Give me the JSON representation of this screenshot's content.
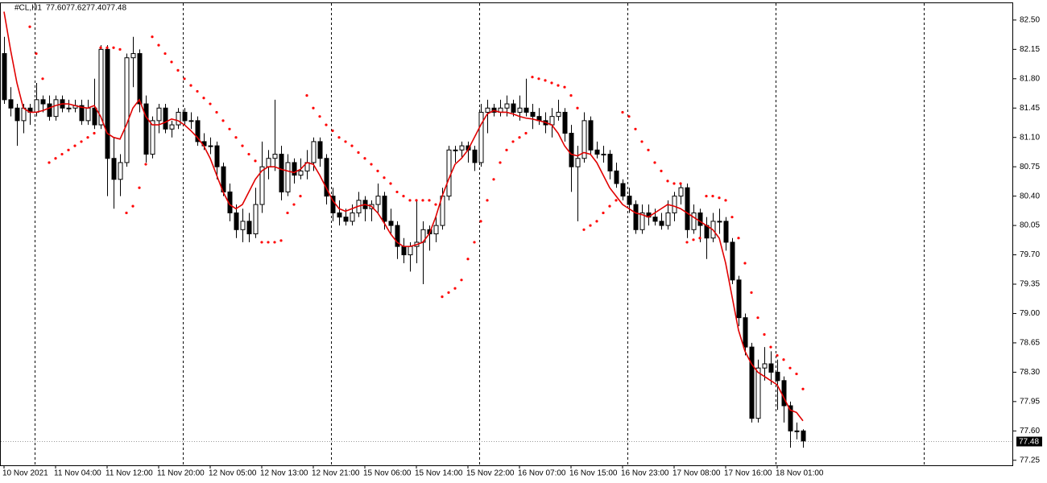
{
  "chart_data": {
    "type": "candlestick",
    "symbol": "#CL,H1",
    "info_labels": [
      "77.60",
      "77.62",
      "77.40",
      "77.48"
    ],
    "categories": [
      "10 Nov 2021",
      null,
      null,
      null,
      null,
      null,
      null,
      null,
      "11 Nov 04:00",
      null,
      null,
      null,
      null,
      null,
      null,
      null,
      "11 Nov 12:00",
      null,
      null,
      null,
      null,
      null,
      null,
      null,
      "11 Nov 20:00",
      null,
      null,
      null,
      null,
      null,
      null,
      null,
      "12 Nov 05:00",
      null,
      null,
      null,
      null,
      null,
      null,
      null,
      "12 Nov 13:00",
      null,
      null,
      null,
      null,
      null,
      null,
      null,
      "12 Nov 21:00",
      null,
      null,
      null,
      null,
      null,
      null,
      null,
      "15 Nov 06:00",
      null,
      null,
      null,
      null,
      null,
      null,
      null,
      "15 Nov 14:00",
      null,
      null,
      null,
      null,
      null,
      null,
      null,
      "15 Nov 22:00",
      null,
      null,
      null,
      null,
      null,
      null,
      null,
      "16 Nov 07:00",
      null,
      null,
      null,
      null,
      null,
      null,
      null,
      "16 Nov 15:00",
      null,
      null,
      null,
      null,
      null,
      null,
      null,
      "16 Nov 23:00",
      null,
      null,
      null,
      null,
      null,
      null,
      null,
      "17 Nov 08:00",
      null,
      null,
      null,
      null,
      null,
      null,
      null,
      "17 Nov 16:00",
      null,
      null,
      null,
      null,
      null,
      null,
      null,
      "18 Nov 01:00",
      null,
      null,
      null,
      null
    ],
    "period_separators": [
      5,
      28,
      51,
      74,
      97,
      120,
      143
    ],
    "ohlc": [
      [
        82.1,
        82.3,
        81.5,
        81.55
      ],
      [
        81.55,
        81.7,
        81.35,
        81.45
      ],
      [
        81.45,
        81.5,
        81.0,
        81.3
      ],
      [
        81.3,
        81.5,
        81.15,
        81.45
      ],
      [
        81.45,
        81.5,
        81.25,
        81.4
      ],
      [
        81.4,
        81.75,
        81.35,
        81.55
      ],
      [
        81.55,
        81.6,
        81.4,
        81.5
      ],
      [
        81.5,
        81.6,
        81.3,
        81.35
      ],
      [
        81.35,
        81.6,
        81.3,
        81.55
      ],
      [
        81.55,
        81.6,
        81.4,
        81.45
      ],
      [
        81.45,
        81.55,
        81.4,
        81.45
      ],
      [
        81.45,
        81.55,
        81.4,
        81.48
      ],
      [
        81.48,
        81.55,
        81.25,
        81.3
      ],
      [
        81.3,
        81.55,
        81.25,
        81.45
      ],
      [
        81.45,
        81.8,
        81.2,
        81.25
      ],
      [
        81.25,
        82.2,
        81.2,
        82.15
      ],
      [
        82.15,
        82.2,
        80.4,
        80.85
      ],
      [
        80.85,
        81.1,
        80.25,
        80.6
      ],
      [
        80.6,
        80.9,
        80.4,
        80.8
      ],
      [
        80.8,
        82.1,
        80.75,
        82.05
      ],
      [
        82.05,
        82.3,
        81.7,
        82.1
      ],
      [
        82.1,
        82.15,
        81.4,
        81.5
      ],
      [
        81.5,
        81.6,
        80.8,
        80.9
      ],
      [
        80.9,
        81.35,
        80.85,
        81.3
      ],
      [
        81.3,
        81.5,
        81.15,
        81.45
      ],
      [
        81.45,
        81.5,
        81.15,
        81.2
      ],
      [
        81.2,
        81.3,
        81.1,
        81.25
      ],
      [
        81.25,
        81.45,
        81.2,
        81.4
      ],
      [
        81.4,
        81.45,
        81.25,
        81.3
      ],
      [
        81.3,
        81.4,
        81.2,
        81.3
      ],
      [
        81.3,
        81.35,
        81.0,
        81.05
      ],
      [
        81.05,
        81.15,
        80.95,
        81.0
      ],
      [
        81.0,
        81.1,
        80.9,
        81.0
      ],
      [
        81.0,
        81.05,
        80.6,
        80.75
      ],
      [
        80.75,
        80.8,
        80.4,
        80.45
      ],
      [
        80.45,
        80.55,
        80.1,
        80.2
      ],
      [
        80.2,
        80.3,
        79.9,
        80.0
      ],
      [
        80.0,
        80.25,
        79.85,
        80.1
      ],
      [
        80.1,
        80.2,
        79.85,
        79.95
      ],
      [
        79.95,
        80.5,
        79.9,
        80.3
      ],
      [
        80.3,
        81.05,
        80.2,
        80.75
      ],
      [
        80.75,
        80.95,
        80.6,
        80.85
      ],
      [
        80.85,
        81.55,
        80.7,
        80.9
      ],
      [
        80.9,
        81.0,
        80.35,
        80.45
      ],
      [
        80.45,
        80.9,
        80.4,
        80.8
      ],
      [
        80.8,
        80.85,
        80.55,
        80.65
      ],
      [
        80.65,
        80.85,
        80.6,
        80.7
      ],
      [
        80.7,
        80.95,
        80.6,
        80.8
      ],
      [
        80.8,
        81.1,
        80.7,
        81.05
      ],
      [
        81.05,
        81.1,
        80.75,
        80.85
      ],
      [
        80.85,
        80.9,
        80.3,
        80.4
      ],
      [
        80.4,
        80.5,
        80.1,
        80.2
      ],
      [
        80.2,
        80.35,
        80.05,
        80.15
      ],
      [
        80.15,
        80.25,
        80.05,
        80.1
      ],
      [
        80.1,
        80.3,
        80.05,
        80.2
      ],
      [
        80.2,
        80.45,
        80.15,
        80.35
      ],
      [
        80.35,
        80.4,
        80.1,
        80.25
      ],
      [
        80.25,
        80.35,
        80.1,
        80.3
      ],
      [
        80.3,
        80.55,
        80.2,
        80.4
      ],
      [
        80.4,
        80.45,
        80.0,
        80.1
      ],
      [
        80.1,
        80.25,
        79.95,
        80.05
      ],
      [
        80.05,
        80.1,
        79.65,
        79.8
      ],
      [
        79.8,
        79.9,
        79.6,
        79.7
      ],
      [
        79.7,
        79.85,
        79.5,
        79.8
      ],
      [
        79.8,
        80.35,
        79.6,
        79.85
      ],
      [
        79.85,
        80.1,
        79.35,
        80.0
      ],
      [
        80.0,
        80.05,
        79.75,
        79.95
      ],
      [
        79.95,
        80.15,
        79.85,
        80.05
      ],
      [
        80.05,
        80.5,
        80.0,
        80.4
      ],
      [
        80.4,
        81.0,
        80.35,
        80.95
      ],
      [
        80.95,
        81.0,
        80.8,
        80.95
      ],
      [
        80.95,
        81.05,
        80.85,
        81.0
      ],
      [
        81.0,
        81.05,
        80.8,
        80.95
      ],
      [
        80.95,
        81.0,
        80.7,
        80.8
      ],
      [
        80.8,
        81.5,
        80.75,
        81.4
      ],
      [
        81.4,
        81.55,
        81.15,
        81.45
      ],
      [
        81.45,
        81.5,
        81.35,
        81.4
      ],
      [
        81.4,
        81.55,
        81.35,
        81.45
      ],
      [
        81.45,
        81.6,
        81.35,
        81.5
      ],
      [
        81.5,
        81.55,
        81.35,
        81.4
      ],
      [
        81.4,
        81.6,
        81.3,
        81.45
      ],
      [
        81.45,
        81.8,
        81.35,
        81.4
      ],
      [
        81.4,
        81.5,
        81.2,
        81.35
      ],
      [
        81.35,
        81.45,
        81.25,
        81.3
      ],
      [
        81.3,
        81.4,
        81.15,
        81.25
      ],
      [
        81.25,
        81.45,
        81.1,
        81.35
      ],
      [
        81.35,
        81.55,
        81.3,
        81.4
      ],
      [
        81.4,
        81.45,
        81.05,
        81.15
      ],
      [
        81.15,
        81.25,
        80.45,
        80.75
      ],
      [
        80.75,
        81.0,
        80.1,
        80.85
      ],
      [
        80.85,
        81.4,
        80.8,
        81.3
      ],
      [
        81.3,
        81.35,
        80.9,
        80.95
      ],
      [
        80.95,
        81.05,
        80.85,
        80.9
      ],
      [
        80.9,
        81.0,
        80.8,
        80.9
      ],
      [
        80.9,
        80.95,
        80.6,
        80.7
      ],
      [
        80.7,
        80.8,
        80.5,
        80.55
      ],
      [
        80.55,
        80.6,
        80.35,
        80.4
      ],
      [
        80.4,
        80.5,
        80.2,
        80.3
      ],
      [
        80.3,
        80.35,
        79.95,
        80.0
      ],
      [
        80.0,
        80.3,
        79.95,
        80.2
      ],
      [
        80.2,
        80.3,
        80.05,
        80.15
      ],
      [
        80.15,
        80.25,
        80.05,
        80.1
      ],
      [
        80.1,
        80.2,
        80.0,
        80.05
      ],
      [
        80.05,
        80.35,
        80.0,
        80.2
      ],
      [
        80.2,
        80.45,
        80.1,
        80.4
      ],
      [
        80.4,
        80.55,
        80.3,
        80.5
      ],
      [
        80.5,
        80.55,
        79.9,
        80.0
      ],
      [
        80.0,
        80.3,
        79.95,
        80.2
      ],
      [
        80.2,
        80.25,
        79.85,
        80.05
      ],
      [
        80.05,
        80.15,
        79.65,
        79.9
      ],
      [
        79.9,
        80.2,
        79.85,
        80.1
      ],
      [
        80.1,
        80.25,
        79.95,
        80.1
      ],
      [
        80.1,
        80.15,
        79.75,
        79.85
      ],
      [
        79.85,
        79.9,
        79.35,
        79.4
      ],
      [
        79.4,
        79.45,
        78.85,
        78.95
      ],
      [
        78.95,
        79.0,
        78.5,
        78.6
      ],
      [
        78.6,
        78.65,
        77.7,
        77.75
      ],
      [
        77.75,
        78.45,
        77.7,
        78.35
      ],
      [
        78.35,
        78.6,
        78.2,
        78.4
      ],
      [
        78.4,
        78.55,
        78.15,
        78.3
      ],
      [
        78.3,
        78.45,
        77.85,
        78.2
      ],
      [
        78.2,
        78.25,
        77.7,
        77.9
      ],
      [
        77.9,
        77.95,
        77.4,
        77.6
      ],
      [
        77.6,
        77.7,
        77.5,
        77.6
      ],
      [
        77.6,
        77.62,
        77.4,
        77.48
      ]
    ],
    "bull_color": "#ffffff",
    "bear_color": "#000000",
    "moving_average": {
      "color": "#e00000",
      "values": [
        82.6,
        82.15,
        81.75,
        81.45,
        81.4,
        81.4,
        81.42,
        81.45,
        81.48,
        81.5,
        81.5,
        81.48,
        81.46,
        81.45,
        81.48,
        81.35,
        81.15,
        81.1,
        81.08,
        81.25,
        81.45,
        81.55,
        81.35,
        81.25,
        81.25,
        81.28,
        81.32,
        81.3,
        81.25,
        81.18,
        81.1,
        81.0,
        80.85,
        80.65,
        80.45,
        80.3,
        80.25,
        80.3,
        80.45,
        80.6,
        80.7,
        80.75,
        80.75,
        80.72,
        80.7,
        80.68,
        80.72,
        80.8,
        80.78,
        80.65,
        80.5,
        80.35,
        80.25,
        80.22,
        80.25,
        80.28,
        80.3,
        80.28,
        80.2,
        80.08,
        79.95,
        79.85,
        79.8,
        79.8,
        79.82,
        79.85,
        79.95,
        80.15,
        80.4,
        80.6,
        80.78,
        80.85,
        80.95,
        81.1,
        81.25,
        81.38,
        81.42,
        81.4,
        81.4,
        81.38,
        81.35,
        81.33,
        81.32,
        81.3,
        81.28,
        81.25,
        81.15,
        81.0,
        80.9,
        80.88,
        80.92,
        80.9,
        80.8,
        80.65,
        80.5,
        80.4,
        80.3,
        80.25,
        80.2,
        80.18,
        80.15,
        80.2,
        80.25,
        80.3,
        80.28,
        80.25,
        80.2,
        80.15,
        80.1,
        80.05,
        80.0,
        79.9,
        79.6,
        79.2,
        78.8,
        78.55,
        78.4,
        78.3,
        78.25,
        78.2,
        78.15,
        78.0,
        77.85,
        77.82,
        77.72
      ]
    },
    "parabolic_sar": {
      "color": "#ff0000",
      "values": [
        null,
        null,
        null,
        null,
        82.42,
        82.1,
        81.8,
        80.8,
        80.85,
        80.9,
        80.95,
        81.0,
        81.05,
        81.1,
        81.15,
        82.17,
        82.17,
        82.17,
        82.15,
        80.2,
        80.28,
        80.5,
        80.78,
        82.3,
        82.2,
        82.1,
        82.0,
        81.9,
        81.8,
        81.72,
        81.65,
        81.57,
        81.5,
        81.4,
        81.3,
        81.2,
        81.1,
        81.0,
        80.9,
        80.82,
        79.85,
        79.85,
        79.85,
        79.87,
        80.2,
        80.3,
        80.4,
        81.6,
        81.45,
        81.35,
        81.25,
        81.18,
        81.1,
        81.05,
        81.0,
        80.92,
        80.85,
        80.78,
        80.7,
        80.62,
        80.55,
        80.45,
        80.4,
        80.35,
        80.35,
        80.35,
        80.35,
        80.3,
        79.2,
        79.25,
        79.3,
        79.4,
        79.65,
        79.85,
        80.1,
        80.35,
        80.6,
        80.8,
        80.95,
        81.05,
        81.1,
        81.15,
        81.82,
        81.8,
        81.78,
        81.75,
        81.72,
        81.7,
        81.6,
        81.45,
        80.0,
        80.05,
        80.1,
        80.2,
        80.28,
        80.35,
        81.4,
        81.35,
        81.2,
        81.05,
        80.95,
        80.8,
        80.7,
        80.58,
        80.55,
        80.55,
        79.85,
        79.88,
        79.9,
        80.4,
        80.4,
        80.38,
        80.35,
        80.15,
        79.9,
        79.6,
        79.25,
        78.95,
        78.75,
        78.6,
        78.5,
        78.45,
        78.35,
        78.28,
        78.1
      ]
    },
    "last_price": {
      "value": 77.48,
      "label": "77.48"
    },
    "ylim": [
      77.19,
      82.71
    ],
    "yticks": [
      {
        "value": 82.5,
        "label": "82.50"
      },
      {
        "value": 82.15,
        "label": "82.15"
      },
      {
        "value": 81.8,
        "label": "81.80"
      },
      {
        "value": 81.45,
        "label": "81.45"
      },
      {
        "value": 81.1,
        "label": "81.10"
      },
      {
        "value": 80.75,
        "label": "80.75"
      },
      {
        "value": 80.4,
        "label": "80.40"
      },
      {
        "value": 80.05,
        "label": "80.05"
      },
      {
        "value": 79.7,
        "label": "79.70"
      },
      {
        "value": 79.35,
        "label": "79.35"
      },
      {
        "value": 79.0,
        "label": "79.00"
      },
      {
        "value": 78.65,
        "label": "78.65"
      },
      {
        "value": 78.3,
        "label": "78.30"
      },
      {
        "value": 77.95,
        "label": "77.95"
      },
      {
        "value": 77.6,
        "label": "77.60"
      },
      {
        "value": 77.25,
        "label": "77.25"
      }
    ]
  }
}
